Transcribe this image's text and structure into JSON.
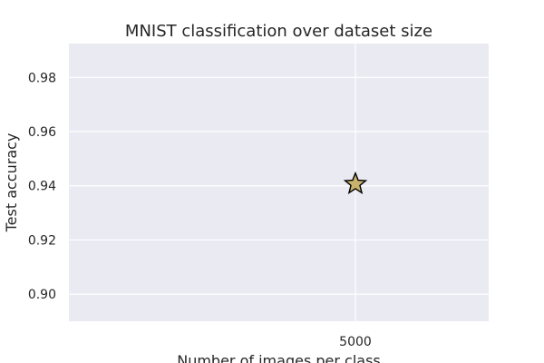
{
  "chart_data": {
    "type": "scatter",
    "title": "MNIST classification over dataset size",
    "xlabel": "Number of images per class",
    "ylabel": "Test accuracy",
    "x_ticks": [
      5000
    ],
    "y_ticks": [
      0.9,
      0.92,
      0.94,
      0.96,
      0.98
    ],
    "ylim": [
      0.89,
      0.9925
    ],
    "grid": true,
    "series": [
      {
        "points": [
          {
            "x": 5000,
            "y": 0.941
          }
        ],
        "marker": "star",
        "color": "#c8b26e"
      }
    ]
  },
  "colors": {
    "plot_background": "#eaeaf2",
    "grid": "#ffffff",
    "marker_fill": "#c8b26e",
    "marker_edge": "#000000"
  }
}
